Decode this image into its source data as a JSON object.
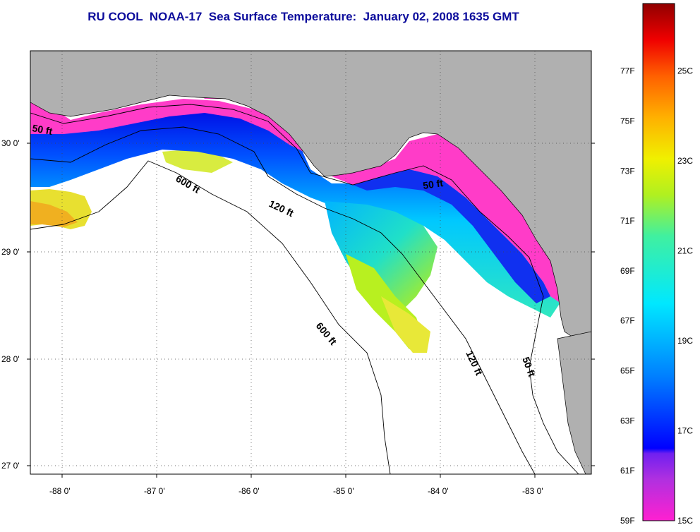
{
  "title": "RU COOL  NOAA-17  Sea Surface Temperature:  January 02, 2008 1635 GMT",
  "axes": {
    "lat_labels": [
      "30 0'",
      "29 0'",
      "28 0'",
      "27 0'"
    ],
    "lon_labels": [
      "-88 0'",
      "-87 0'",
      "-86 0'",
      "-85 0'",
      "-84 0'",
      "-83 0'"
    ]
  },
  "contours": {
    "shelf_50_labels": [
      "50 ft",
      "50 ft",
      "50 ft"
    ],
    "shelf_120_labels": [
      "120 ft",
      "120 ft"
    ],
    "slope_600_labels": [
      "600 ft",
      "600 ft"
    ]
  },
  "colorbar": {
    "fahrenheit": [
      "77F",
      "75F",
      "73F",
      "71F",
      "69F",
      "67F",
      "65F",
      "63F",
      "61F",
      "59F"
    ],
    "celsius": [
      "25C",
      "23C",
      "21C",
      "19C",
      "17C",
      "15C"
    ],
    "range_c": [
      15,
      26.5
    ]
  },
  "colors": {
    "land": "#b0b0b0",
    "title": "#0d0d9c",
    "no_data": "#ffffff"
  }
}
